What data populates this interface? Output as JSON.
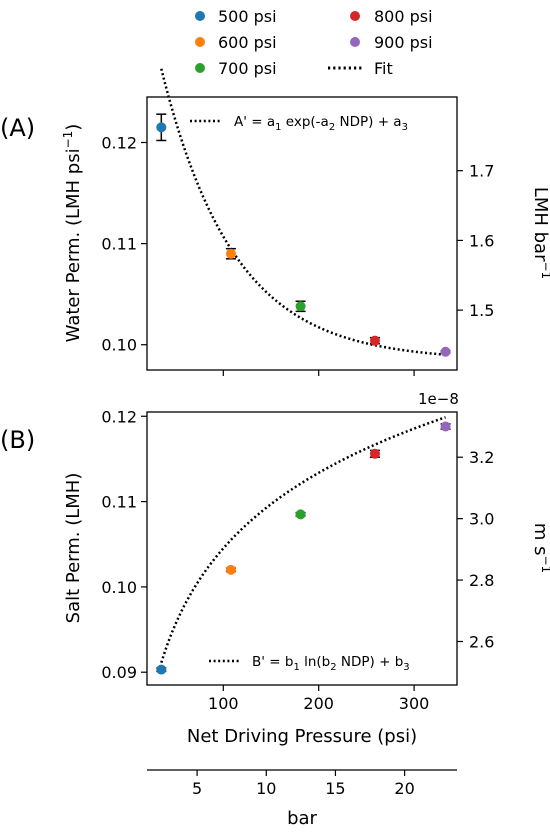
{
  "legend": [
    {
      "label": "500 psi",
      "color": "#1f77b4",
      "kind": "marker"
    },
    {
      "label": "600 psi",
      "color": "#ff7f0e",
      "kind": "marker"
    },
    {
      "label": "700 psi",
      "color": "#2ca02c",
      "kind": "marker"
    },
    {
      "label": "800 psi",
      "color": "#d62728",
      "kind": "marker"
    },
    {
      "label": "900 psi",
      "color": "#9467bd",
      "kind": "marker"
    },
    {
      "label": "Fit",
      "color": "#000000",
      "kind": "dotted-line"
    }
  ],
  "xlabel": "Net Driving Pressure (psi)",
  "secondary_xlabel": "bar",
  "chart_data": [
    {
      "type": "scatter",
      "panel_label": "(A)",
      "ylabel": "Water Perm. (LMH psi",
      "ylabel_sup": "−1",
      "ylabel_end": ")",
      "y2label": "LMH bar",
      "y2label_sup": "−1",
      "fit_label": {
        "pre": "A' = a",
        "parts": [
          [
            "1",
            " exp(-a"
          ],
          [
            "2",
            " NDP) + a"
          ],
          [
            "3",
            ""
          ]
        ]
      },
      "xlim": [
        20,
        345
      ],
      "ylim": [
        0.0975,
        0.1245
      ],
      "xticks": [
        100,
        200,
        300
      ],
      "yticks": [
        0.1,
        0.11,
        0.12
      ],
      "ytick_labels": [
        "0.10",
        "0.11",
        "0.12"
      ],
      "y2ticks": [
        1.5,
        1.6,
        1.7
      ],
      "y2tick_labels": [
        "1.5",
        "1.6",
        "1.7"
      ],
      "y2_factor": 14.5038,
      "points": [
        {
          "series": "500 psi",
          "x": 35,
          "y": 0.1215,
          "err": 0.0013,
          "color": "#1f77b4"
        },
        {
          "series": "600 psi",
          "x": 108,
          "y": 0.109,
          "err": 0.0005,
          "color": "#ff7f0e"
        },
        {
          "series": "700 psi",
          "x": 181,
          "y": 0.1038,
          "err": 0.0005,
          "color": "#2ca02c"
        },
        {
          "series": "800 psi",
          "x": 259,
          "y": 0.1004,
          "err": 0.0003,
          "color": "#d62728"
        },
        {
          "series": "900 psi",
          "x": 333,
          "y": 0.0993,
          "err": 0.0001,
          "color": "#9467bd"
        }
      ],
      "fit": {
        "form": "exp",
        "a1": 0.04575,
        "a2": 0.01317,
        "a3": 0.09844,
        "x_range": [
          35,
          333
        ]
      }
    },
    {
      "type": "scatter",
      "panel_label": "(B)",
      "ylabel": "Salt Perm. (LMH)",
      "y2label": "m s",
      "y2label_sup": "−1",
      "y2_offset": "1e−8",
      "fit_label": {
        "pre": "B' = b",
        "parts": [
          [
            "1",
            " ln(b"
          ],
          [
            "2",
            " NDP) + b"
          ],
          [
            "3",
            ""
          ]
        ]
      },
      "xlim": [
        20,
        345
      ],
      "ylim": [
        0.0885,
        0.1205
      ],
      "xticks": [
        100,
        200,
        300
      ],
      "xtick_labels": [
        "100",
        "200",
        "300"
      ],
      "yticks": [
        0.09,
        0.1,
        0.11,
        0.12
      ],
      "ytick_labels": [
        "0.09",
        "0.10",
        "0.11",
        "0.12"
      ],
      "y2ticks": [
        2.6,
        2.8,
        3.0,
        3.2
      ],
      "y2tick_labels": [
        "2.6",
        "2.8",
        "3.0",
        "3.2"
      ],
      "y2_factor": 27.7778,
      "points": [
        {
          "series": "500 psi",
          "x": 35,
          "y": 0.0903,
          "err": 0.0002,
          "color": "#1f77b4"
        },
        {
          "series": "600 psi",
          "x": 108,
          "y": 0.102,
          "err": 0.0002,
          "color": "#ff7f0e"
        },
        {
          "series": "700 psi",
          "x": 181,
          "y": 0.1085,
          "err": 0.0002,
          "color": "#2ca02c"
        },
        {
          "series": "800 psi",
          "x": 259,
          "y": 0.1156,
          "err": 0.0004,
          "color": "#d62728"
        },
        {
          "series": "900 psi",
          "x": 333,
          "y": 0.1188,
          "err": 0.0003,
          "color": "#9467bd"
        }
      ],
      "fit": {
        "form": "ln",
        "b1": 0.01277,
        "b2": 0.11,
        "b3": 0.0739,
        "x_range": [
          35,
          333
        ]
      }
    }
  ],
  "secondary_xaxis": {
    "factor": 0.0689476,
    "ticks": [
      5,
      10,
      15,
      20
    ],
    "tick_labels": [
      "5",
      "10",
      "15",
      "20"
    ]
  }
}
